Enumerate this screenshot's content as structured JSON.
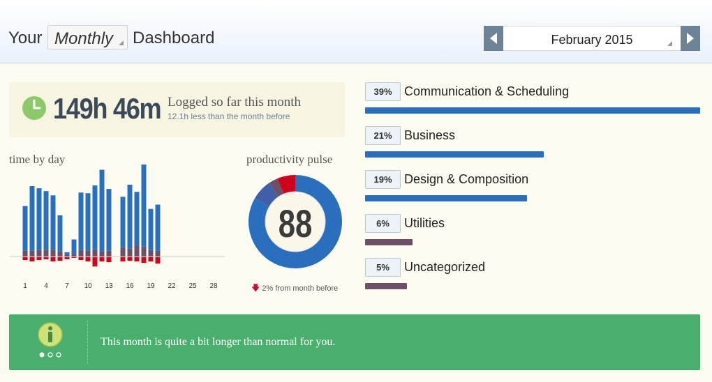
{
  "header": {
    "title_prefix": "Your",
    "period_value": "Monthly",
    "title_suffix": "Dashboard",
    "date_value": "February 2015"
  },
  "summary": {
    "logged_value": "149h 46m",
    "logged_label": "Logged so far this month",
    "logged_sub": "12.1h less than the month before"
  },
  "time_by_day": {
    "title": "time by day"
  },
  "pulse": {
    "title": "productivity pulse",
    "score": "88",
    "change_text": "2% from month before"
  },
  "categories": [
    {
      "pct": "39%",
      "name": "Communication & Scheduling",
      "fraction": 1.0,
      "color": "#2a6fbd"
    },
    {
      "pct": "21%",
      "name": "Business",
      "fraction": 0.533,
      "color": "#2a6fbd"
    },
    {
      "pct": "19%",
      "name": "Design & Composition",
      "fraction": 0.483,
      "color": "#2a6fbd"
    },
    {
      "pct": "6%",
      "name": "Utilities",
      "fraction": 0.142,
      "color": "#6b5068"
    },
    {
      "pct": "5%",
      "name": "Uncategorized",
      "fraction": 0.125,
      "color": "#6b5068"
    }
  ],
  "banner": {
    "message": "This month is quite a bit longer than normal for you."
  },
  "colors": {
    "productive": "#2a6fbd",
    "neutral": "#6b5068",
    "distracting": "#d0021b",
    "banner": "#4aaf6e"
  },
  "chart_data": [
    {
      "type": "bar",
      "title": "time by day",
      "x_tick_labels": [
        "1",
        "4",
        "7",
        "10",
        "13",
        "16",
        "19",
        "22",
        "25",
        "28"
      ],
      "days": [
        1,
        2,
        3,
        4,
        5,
        6,
        7,
        8,
        9,
        10,
        11,
        12,
        13,
        14,
        15,
        16,
        17,
        18,
        19,
        20,
        21,
        22,
        23,
        24,
        25,
        26,
        27,
        28
      ],
      "series": [
        {
          "values": [
            6.3,
            9.1,
            8.7,
            8.3,
            7.7,
            5.1,
            0.4,
            2.1,
            8.1,
            8.1,
            9.0,
            11.5,
            8.7,
            0,
            7.1,
            9.0,
            7.5,
            12.0,
            5.8,
            6.5,
            0,
            0,
            0,
            0,
            0,
            0,
            0,
            0
          ]
        },
        {
          "values": [
            0.8,
            0.8,
            0.9,
            0.9,
            0.9,
            0.7,
            0.2,
            0.3,
            0.9,
            0.8,
            1.0,
            0.7,
            0.8,
            0,
            1.3,
            1.1,
            1.6,
            1.4,
            0.9,
            0.8,
            0,
            0,
            0,
            0,
            0,
            0,
            0,
            0
          ]
        },
        {
          "values": [
            0.4,
            0.6,
            0.4,
            0.3,
            0.6,
            0.5,
            0.3,
            0.1,
            0.4,
            0.6,
            1.3,
            0.6,
            0.7,
            0,
            0.6,
            0.5,
            0.6,
            0.8,
            0.6,
            0.9,
            0,
            0,
            0,
            0,
            0,
            0,
            0,
            0
          ]
        }
      ]
    },
    {
      "type": "pie",
      "title": "productivity pulse",
      "series": [
        {
          "values": [
            80,
            7,
            3,
            6
          ]
        }
      ]
    }
  ]
}
